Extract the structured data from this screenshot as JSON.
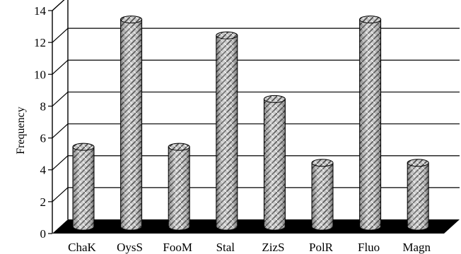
{
  "chart_data": {
    "type": "bar",
    "style": "3d-cylinder",
    "categories": [
      "ChaK",
      "OysS",
      "FooM",
      "Stal",
      "ZizS",
      "PolR",
      "Fluo",
      "Magn"
    ],
    "values": [
      5,
      13,
      5,
      12,
      8,
      4,
      13,
      4
    ],
    "ylabel": "Frequency",
    "ylim": [
      0,
      14
    ],
    "yticks": [
      0,
      2,
      4,
      6,
      8,
      10,
      12,
      14
    ],
    "grid": true,
    "legend": "none",
    "colors": {
      "bar_fill": "#b9b9b9",
      "bar_pattern": "#555555",
      "floor": "#000000",
      "gridline": "#000000",
      "background": "#ffffff"
    }
  }
}
